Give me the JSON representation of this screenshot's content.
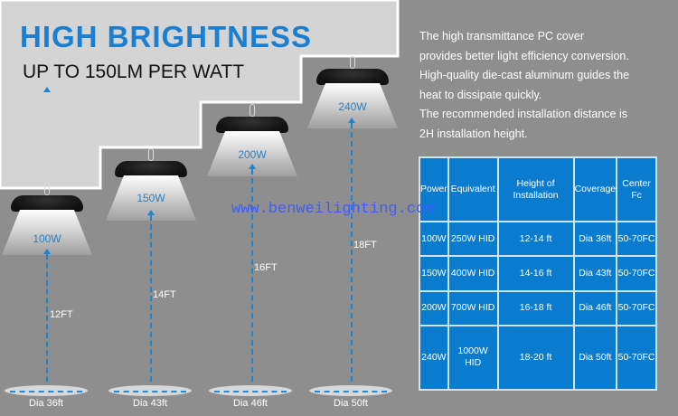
{
  "headline": "HIGH BRIGHTNESS",
  "subheadline": "UP TO 150LM PER WATT",
  "description": [
    "The high transmittance PC cover",
    "provides better light efficiency conversion.",
    "High-quality die-cast aluminum guides the",
    "heat to dissipate quickly.",
    "The recommended installation distance is",
    "2H installation height."
  ],
  "lamps": [
    {
      "watt": "100W",
      "height": "12FT",
      "diameter": "Dia 36ft"
    },
    {
      "watt": "150W",
      "height": "14FT",
      "diameter": "Dia 43ft"
    },
    {
      "watt": "200W",
      "height": "16FT",
      "diameter": "Dia 46ft"
    },
    {
      "watt": "240W",
      "height": "18FT",
      "diameter": "Dia 50ft"
    }
  ],
  "table": {
    "headers": [
      "Power",
      "Equivalent",
      "Height of Installation",
      "Coverage",
      "Center Fc"
    ],
    "rows": [
      [
        "100W",
        "250W HID",
        "12-14 ft",
        "Dia 36ft",
        "50-70FC"
      ],
      [
        "150W",
        "400W HID",
        "14-16 ft",
        "Dia 43ft",
        "50-70FC"
      ],
      [
        "200W",
        "700W HID",
        "16-18 ft",
        "Dia 46ft",
        "50-70FC"
      ],
      [
        "240W",
        "1000W HID",
        "18-20 ft",
        "Dia 50ft",
        "50-70FC"
      ]
    ]
  },
  "watermark": "www.benweilighting.com",
  "colors": {
    "accent": "#1a7fd0",
    "table_bg": "#0a7cd0",
    "background": "#8e8e8e",
    "panel": "#d4d4d4"
  }
}
